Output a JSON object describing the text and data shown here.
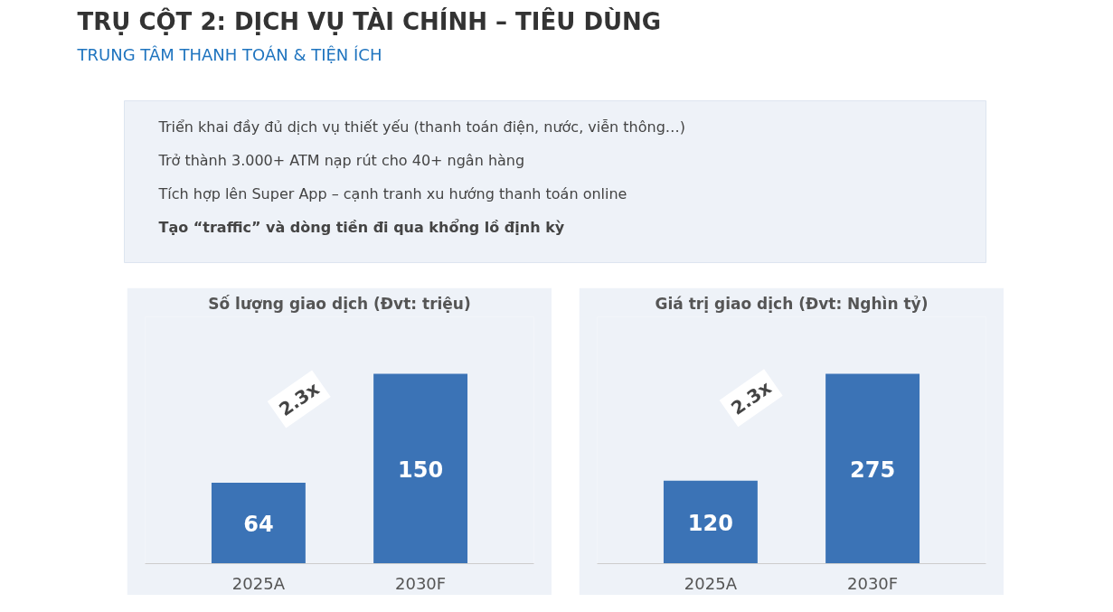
{
  "chart_data": [
    {
      "type": "other",
      "title": "TRỤ CỘT 2: DỊCH VỤ TÀI CHÍNH – TIÊU DÙNG",
      "subtitle": "TRUNG TÂM THANH TOÁN & TIỆN ÍCH",
      "annotations": [
        "Triển khai đầy đủ dịch vụ thiết yếu (thanh toán điện, nước, viễn thông…)",
        "Trở thành 3.000+ ATM nạp rút cho 40+ ngân hàng",
        "Tích hợp lên Super App – cạnh tranh xu hướng thanh toán online",
        "Tạo “traffic” và dòng tiền đi qua khổng lồ định kỳ"
      ]
    },
    {
      "type": "bar",
      "title": "Số lượng giao dịch (Đvt: triệu)",
      "categories": [
        "2025A",
        "2030F"
      ],
      "values": [
        64,
        150
      ],
      "color": "#3b73b6",
      "data_labels": true,
      "grid": false,
      "annotations": [
        "2.3x"
      ]
    },
    {
      "type": "bar",
      "title": "Giá trị giao dịch (Đvt: Nghìn tỷ)",
      "categories": [
        "2025A",
        "2030F"
      ],
      "values": [
        120,
        275
      ],
      "color": "#3b73b6",
      "data_labels": true,
      "grid": false,
      "annotations": [
        "2.3x"
      ]
    }
  ]
}
